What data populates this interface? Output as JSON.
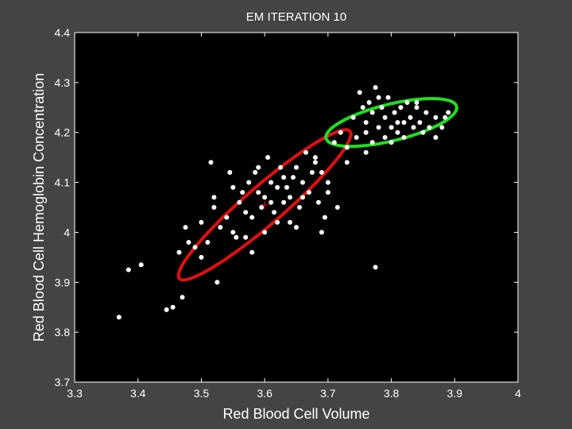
{
  "chart_data": {
    "type": "scatter",
    "title": "EM ITERATION 10",
    "xlabel": "Red Blood Cell Volume",
    "ylabel": "Red Blood Cell Hemoglobin Concentration",
    "xlim": [
      3.3,
      4.0
    ],
    "ylim": [
      3.7,
      4.4
    ],
    "xticks": [
      "3.3",
      "3.4",
      "3.5",
      "3.6",
      "3.7",
      "3.8",
      "3.9",
      "4"
    ],
    "yticks": [
      "3.7",
      "3.8",
      "3.9",
      "4",
      "4.1",
      "4.2",
      "4.3",
      "4.4"
    ],
    "grid": false,
    "colors": {
      "background": "#444444",
      "plot_area": "#000000",
      "points": "#ffffff",
      "cluster_1": "#e01010",
      "cluster_2": "#22dd22"
    },
    "clusters": [
      {
        "color": "#e01010",
        "center": [
          3.6,
          4.055
        ],
        "semi_major": 0.2,
        "semi_minor": 0.034,
        "angle_deg": 48,
        "center_marker": "plus"
      },
      {
        "color": "#22dd22",
        "center": [
          3.8,
          4.22
        ],
        "semi_major": 0.108,
        "semi_minor": 0.036,
        "angle_deg": 18
      }
    ],
    "points": [
      [
        3.37,
        3.83
      ],
      [
        3.385,
        3.925
      ],
      [
        3.405,
        3.935
      ],
      [
        3.445,
        3.845
      ],
      [
        3.455,
        3.85
      ],
      [
        3.465,
        3.96
      ],
      [
        3.47,
        3.87
      ],
      [
        3.475,
        4.01
      ],
      [
        3.49,
        3.97
      ],
      [
        3.5,
        4.02
      ],
      [
        3.51,
        3.98
      ],
      [
        3.515,
        4.14
      ],
      [
        3.52,
        4.05
      ],
      [
        3.525,
        3.9
      ],
      [
        3.53,
        4.01
      ],
      [
        3.54,
        4.03
      ],
      [
        3.545,
        4.12
      ],
      [
        3.55,
        4.0
      ],
      [
        3.555,
        3.99
      ],
      [
        3.56,
        4.06
      ],
      [
        3.565,
        4.08
      ],
      [
        3.57,
        3.99
      ],
      [
        3.575,
        4.1
      ],
      [
        3.58,
        4.03
      ],
      [
        3.585,
        4.12
      ],
      [
        3.59,
        4.08
      ],
      [
        3.595,
        4.05
      ],
      [
        3.6,
        4.07
      ],
      [
        3.605,
        4.15
      ],
      [
        3.61,
        4.1
      ],
      [
        3.615,
        4.04
      ],
      [
        3.62,
        4.02
      ],
      [
        3.625,
        4.13
      ],
      [
        3.63,
        4.06
      ],
      [
        3.635,
        4.09
      ],
      [
        3.64,
        4.07
      ],
      [
        3.645,
        4.11
      ],
      [
        3.65,
        4.01
      ],
      [
        3.655,
        4.05
      ],
      [
        3.66,
        4.1
      ],
      [
        3.665,
        4.16
      ],
      [
        3.67,
        4.08
      ],
      [
        3.675,
        4.12
      ],
      [
        3.68,
        4.14
      ],
      [
        3.685,
        4.06
      ],
      [
        3.69,
        4.12
      ],
      [
        3.695,
        4.03
      ],
      [
        3.7,
        4.1
      ],
      [
        3.71,
        4.18
      ],
      [
        3.715,
        4.05
      ],
      [
        3.72,
        4.2
      ],
      [
        3.73,
        4.14
      ],
      [
        3.74,
        4.23
      ],
      [
        3.745,
        4.19
      ],
      [
        3.75,
        4.28
      ],
      [
        3.755,
        4.25
      ],
      [
        3.76,
        4.22
      ],
      [
        3.765,
        4.26
      ],
      [
        3.77,
        4.24
      ],
      [
        3.775,
        3.93
      ],
      [
        3.775,
        4.29
      ],
      [
        3.78,
        4.21
      ],
      [
        3.785,
        4.25
      ],
      [
        3.79,
        4.23
      ],
      [
        3.795,
        4.27
      ],
      [
        3.8,
        4.21
      ],
      [
        3.805,
        4.24
      ],
      [
        3.81,
        4.2
      ],
      [
        3.815,
        4.25
      ],
      [
        3.82,
        4.22
      ],
      [
        3.825,
        4.26
      ],
      [
        3.83,
        4.23
      ],
      [
        3.835,
        4.21
      ],
      [
        3.84,
        4.25
      ],
      [
        3.845,
        4.22
      ],
      [
        3.85,
        4.2
      ],
      [
        3.855,
        4.24
      ],
      [
        3.86,
        4.21
      ],
      [
        3.87,
        4.23
      ],
      [
        3.88,
        4.21
      ],
      [
        3.885,
        4.23
      ],
      [
        3.79,
        4.19
      ],
      [
        3.8,
        4.18
      ],
      [
        3.81,
        4.22
      ],
      [
        3.76,
        4.2
      ],
      [
        3.77,
        4.18
      ],
      [
        3.65,
        4.13
      ],
      [
        3.66,
        4.07
      ],
      [
        3.58,
        3.96
      ],
      [
        3.55,
        4.09
      ],
      [
        3.6,
        4.0
      ],
      [
        3.64,
        4.02
      ],
      [
        3.63,
        4.11
      ],
      [
        3.59,
        4.13
      ],
      [
        3.61,
        4.06
      ],
      [
        3.68,
        4.15
      ],
      [
        3.7,
        4.08
      ],
      [
        3.57,
        4.04
      ],
      [
        3.5,
        3.95
      ],
      [
        3.48,
        3.98
      ],
      [
        3.52,
        4.07
      ],
      [
        3.69,
        4.0
      ],
      [
        3.62,
        4.09
      ],
      [
        3.73,
        4.17
      ],
      [
        3.76,
        4.16
      ],
      [
        3.82,
        4.19
      ],
      [
        3.84,
        4.26
      ],
      [
        3.78,
        4.27
      ],
      [
        3.87,
        4.19
      ],
      [
        3.89,
        4.24
      ]
    ]
  }
}
